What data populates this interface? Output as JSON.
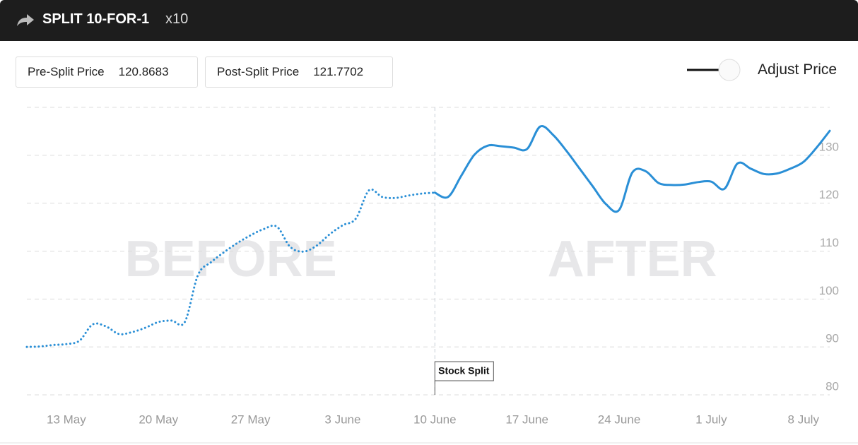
{
  "header": {
    "title": "SPLIT 10-FOR-1",
    "multiplier": "x10"
  },
  "prices": [
    {
      "label": "Pre-Split Price",
      "value": "120.8683"
    },
    {
      "label": "Post-Split Price",
      "value": "121.7702"
    }
  ],
  "toggle": {
    "label": "Adjust Price"
  },
  "chart_data": {
    "type": "line",
    "x": [
      "10 May",
      "11 May",
      "12 May",
      "13 May",
      "14 May",
      "15 May",
      "16 May",
      "17 May",
      "18 May",
      "19 May",
      "20 May",
      "21 May",
      "22 May",
      "23 May",
      "24 May",
      "25 May",
      "26 May",
      "27 May",
      "28 May",
      "29 May",
      "30 May",
      "31 May",
      "1 June",
      "2 June",
      "3 June",
      "4 June",
      "5 June",
      "6 June",
      "7 June",
      "8 June",
      "9 June",
      "10 June",
      "11 June",
      "12 June",
      "13 June",
      "14 June",
      "15 June",
      "16 June",
      "17 June",
      "18 June",
      "19 June",
      "20 June",
      "21 June",
      "22 June",
      "23 June",
      "24 June",
      "25 June",
      "26 June",
      "27 June",
      "28 June",
      "29 June",
      "30 June",
      "1 July",
      "2 July",
      "3 July",
      "4 July",
      "5 July",
      "6 July",
      "7 July",
      "8 July",
      "9 July",
      "10 July"
    ],
    "series": [
      {
        "name": "BEFORE",
        "color": "#2a8fd6",
        "style": "dotted",
        "values": [
          90,
          90.1,
          90.4,
          90.6,
          91.3,
          94.7,
          94.3,
          92.7,
          93.1,
          94,
          95.2,
          95.5,
          95.2,
          105,
          107.7,
          109.8,
          111.7,
          113.3,
          114.6,
          115.1,
          110.9,
          109.9,
          111.1,
          113.5,
          115.4,
          116.8,
          122.7,
          121.3,
          121.1,
          121.6,
          122,
          122.2,
          null,
          null,
          null,
          null,
          null,
          null,
          null,
          null,
          null,
          null,
          null,
          null,
          null,
          null,
          null,
          null,
          null,
          null,
          null,
          null,
          null,
          null,
          null,
          null,
          null,
          null,
          null,
          null,
          null,
          null
        ]
      },
      {
        "name": "AFTER",
        "color": "#2a8fd6",
        "style": "solid",
        "values": [
          null,
          null,
          null,
          null,
          null,
          null,
          null,
          null,
          null,
          null,
          null,
          null,
          null,
          null,
          null,
          null,
          null,
          null,
          null,
          null,
          null,
          null,
          null,
          null,
          null,
          null,
          null,
          null,
          null,
          null,
          null,
          122.2,
          121.3,
          125.7,
          130.1,
          132,
          131.9,
          131.6,
          131.3,
          136,
          134.2,
          130.9,
          127.2,
          123.5,
          119.8,
          118.6,
          126.4,
          126.7,
          124.2,
          123.8,
          123.9,
          124.4,
          124.5,
          123,
          128.3,
          127.2,
          126.1,
          126.2,
          127.2,
          128.6,
          131.6,
          135.1
        ]
      }
    ],
    "xticks": [
      "13 May",
      "20 May",
      "27 May",
      "3 June",
      "10 June",
      "17 June",
      "24 June",
      "1 July",
      "8 July"
    ],
    "ylim": [
      80,
      140
    ],
    "yticks": [
      80,
      90,
      100,
      110,
      120,
      130
    ],
    "grid": true,
    "annotation": {
      "x": "10 June",
      "label": "Stock Split"
    }
  }
}
